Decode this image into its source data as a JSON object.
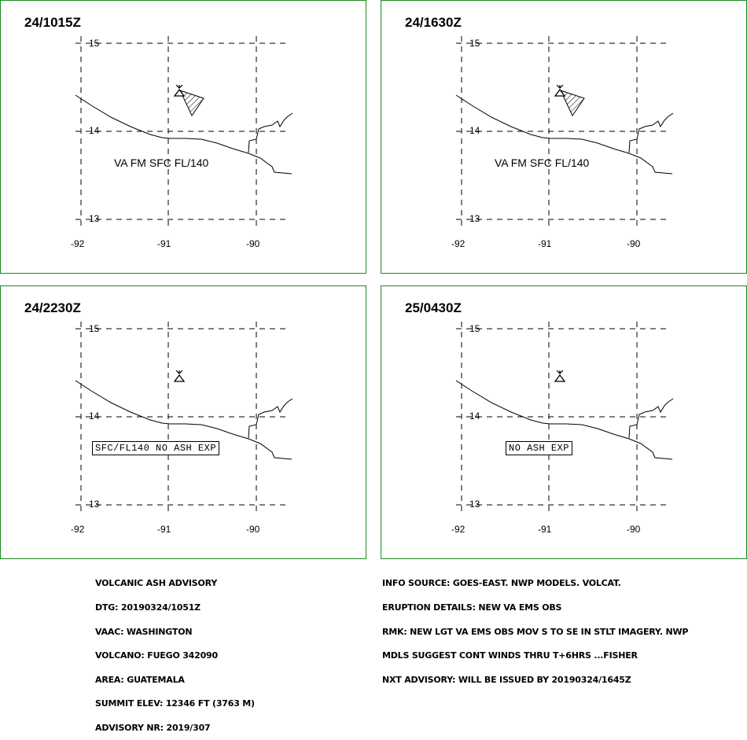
{
  "panels": [
    {
      "time": "24/1015Z",
      "lat_labels": [
        "15",
        "14",
        "13"
      ],
      "lon_labels": [
        "-92",
        "-91",
        "-90"
      ],
      "ash_text": "VA FM SFC FL/140",
      "boxed_text": "",
      "ash_plume": true
    },
    {
      "time": "24/1630Z",
      "lat_labels": [
        "15",
        "14",
        "13"
      ],
      "lon_labels": [
        "-92",
        "-91",
        "-90"
      ],
      "ash_text": "VA FM SFC FL/140",
      "boxed_text": "",
      "ash_plume": true
    },
    {
      "time": "24/2230Z",
      "lat_labels": [
        "15",
        "14",
        "13"
      ],
      "lon_labels": [
        "-92",
        "-91",
        "-90"
      ],
      "ash_text": "",
      "boxed_text": "SFC/FL140 NO ASH EXP",
      "ash_plume": false
    },
    {
      "time": "25/0430Z",
      "lat_labels": [
        "15",
        "14",
        "13"
      ],
      "lon_labels": [
        "-92",
        "-91",
        "-90"
      ],
      "ash_text": "",
      "boxed_text": "NO ASH EXP",
      "ash_plume": false
    }
  ],
  "advisory_left": [
    "VOLCANIC ASH ADVISORY",
    "DTG: 20190324/1051Z",
    "VAAC: WASHINGTON",
    "VOLCANO: FUEGO 342090",
    "AREA: GUATEMALA",
    "SUMMIT ELEV: 12346 FT (3763 M)",
    "ADVISORY NR: 2019/307"
  ],
  "advisory_right": [
    "INFO SOURCE: GOES-EAST. NWP MODELS. VOLCAT.",
    "ERUPTION DETAILS: NEW VA EMS OBS",
    "RMK: NEW LGT VA EMS OBS MOV S TO SE IN STLT IMAGERY. NWP",
    "MDLS SUGGEST CONT WINDS THRU T+6HRS ...FISHER",
    "NXT ADVISORY: WILL BE ISSUED BY 20190324/1645Z"
  ],
  "colors": {
    "panel_border": "#1a8a1a",
    "lines": "#000000",
    "background": "#ffffff"
  }
}
